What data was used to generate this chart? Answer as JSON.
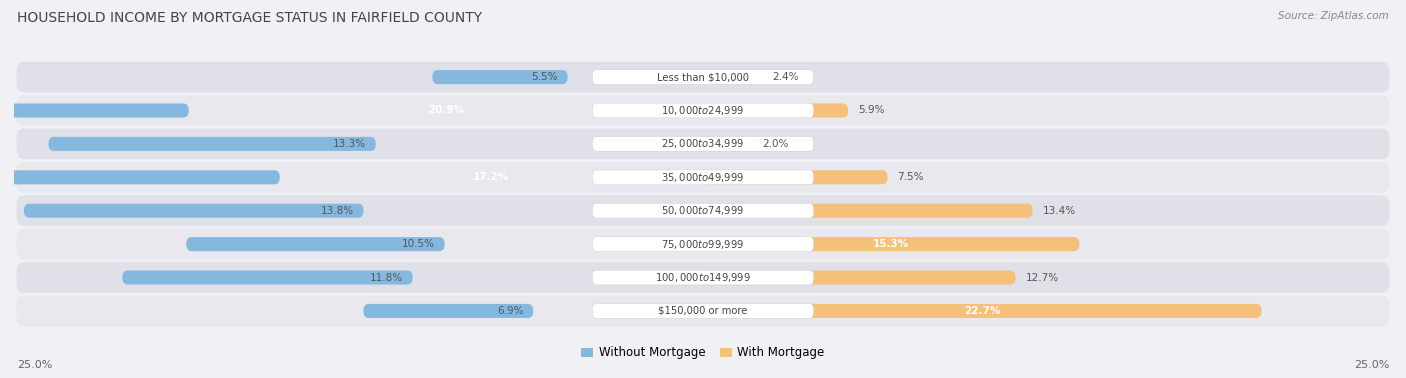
{
  "title": "HOUSEHOLD INCOME BY MORTGAGE STATUS IN FAIRFIELD COUNTY",
  "source": "Source: ZipAtlas.com",
  "categories": [
    "Less than $10,000",
    "$10,000 to $24,999",
    "$25,000 to $34,999",
    "$35,000 to $49,999",
    "$50,000 to $74,999",
    "$75,000 to $99,999",
    "$100,000 to $149,999",
    "$150,000 or more"
  ],
  "without_mortgage": [
    5.5,
    20.9,
    13.3,
    17.2,
    13.8,
    10.5,
    11.8,
    6.9
  ],
  "with_mortgage": [
    2.4,
    5.9,
    2.0,
    7.5,
    13.4,
    15.3,
    12.7,
    22.7
  ],
  "color_without": "#85b8df",
  "color_with": "#f5c07a",
  "axis_max": 25.0,
  "legend_labels": [
    "Without Mortgage",
    "With Mortgage"
  ],
  "axis_label_left": "25.0%",
  "axis_label_right": "25.0%",
  "row_colors": [
    "#dfe0e8",
    "#e8e8ee"
  ],
  "bg_color": "#f0f0f5",
  "label_threshold": 14.0
}
